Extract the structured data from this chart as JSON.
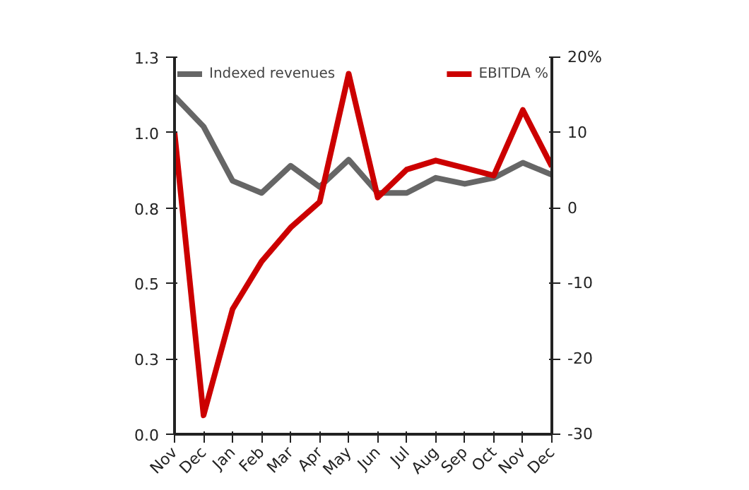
{
  "chart_data": {
    "type": "line",
    "categories": [
      "Nov",
      "Dec",
      "Jan",
      "Feb",
      "Mar",
      "Apr",
      "May",
      "Jun",
      "Jul",
      "Aug",
      "Sep",
      "Oct",
      "Nov",
      "Dec"
    ],
    "series": [
      {
        "name": "Indexed revenues",
        "color": "#666666",
        "values": [
          1.12,
          1.02,
          0.84,
          0.8,
          0.89,
          0.82,
          0.91,
          0.8,
          0.8,
          0.85,
          0.83,
          0.85,
          0.9,
          0.86
        ]
      },
      {
        "name": "EBITDA %",
        "color": "#cc0000",
        "axis": "y2",
        "values": [
          10,
          -27.5,
          -13.4,
          -7.1,
          -2.6,
          0.8,
          17.8,
          1.4,
          5.1,
          6.3,
          5.3,
          4.3,
          13,
          5.5
        ]
      }
    ],
    "ylim": [
      0,
      1.25
    ],
    "yticks": [
      {
        "value": 0,
        "label": "0.0"
      },
      {
        "value": 0.25,
        "label": "0.3"
      },
      {
        "value": 0.5,
        "label": "0.5"
      },
      {
        "value": 0.75,
        "label": "0.8"
      },
      {
        "value": 1.0,
        "label": "1.0"
      },
      {
        "value": 1.25,
        "label": "1.3"
      }
    ],
    "y2lim": [
      -30,
      20
    ],
    "y2ticks": [
      -30,
      -20,
      -10,
      0,
      10,
      {
        "value": 20,
        "label": "20%"
      }
    ],
    "grid": false,
    "legend": "top",
    "marker": "none",
    "line_style": "solid"
  }
}
